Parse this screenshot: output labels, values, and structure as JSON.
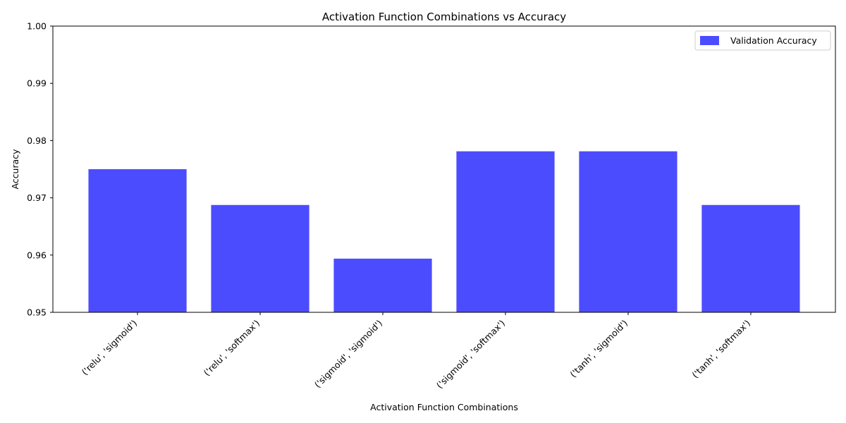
{
  "chart_data": {
    "type": "bar",
    "title": "Activation Function Combinations vs Accuracy",
    "xlabel": "Activation Function Combinations",
    "ylabel": "Accuracy",
    "categories": [
      "('relu', 'sigmoid')",
      "('relu', 'softmax')",
      "('sigmoid', 'sigmoid')",
      "('sigmoid', 'softmax')",
      "('tanh', 'sigmoid')",
      "('tanh', 'softmax')"
    ],
    "series": [
      {
        "name": "Validation Accuracy",
        "color": "#4c4cff",
        "values": [
          0.975,
          0.96875,
          0.959375,
          0.978125,
          0.978125,
          0.96875
        ]
      }
    ],
    "ylim": [
      0.95,
      1.0
    ],
    "yticks": [
      "0.95",
      "0.96",
      "0.97",
      "0.98",
      "0.99",
      "1.00"
    ],
    "grid": false,
    "legend_position": "top-right"
  }
}
